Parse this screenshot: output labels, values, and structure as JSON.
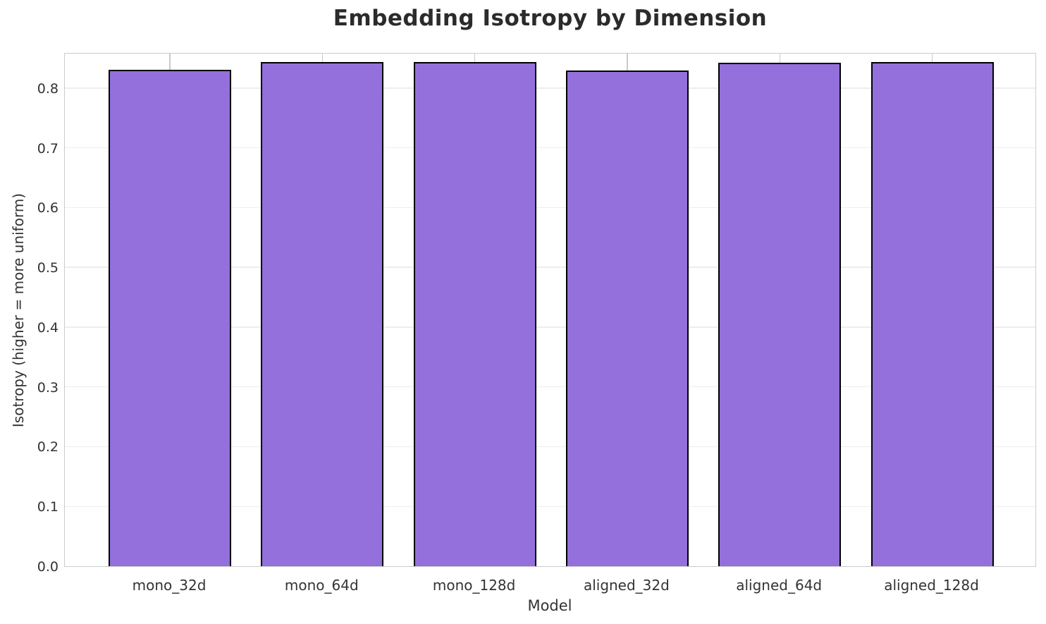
{
  "chart_data": {
    "type": "bar",
    "title": "Embedding Isotropy by Dimension",
    "xlabel": "Model",
    "ylabel": "Isotropy (higher = more uniform)",
    "categories": [
      "mono_32d",
      "mono_64d",
      "mono_128d",
      "aligned_32d",
      "aligned_64d",
      "aligned_128d"
    ],
    "values": [
      0.83,
      0.843,
      0.844,
      0.829,
      0.842,
      0.843
    ],
    "ylim": [
      0,
      0.86
    ],
    "yticks": [
      "0.0",
      "0.1",
      "0.2",
      "0.3",
      "0.4",
      "0.5",
      "0.6",
      "0.7",
      "0.8"
    ],
    "grid": true,
    "legend": false,
    "colors": {
      "bar_fill": "#9370DB",
      "bar_edge": "#000000",
      "vertical_grid": "#c9c9c9",
      "horizontal_grid": "#ededed",
      "spine": "#cccccc",
      "title_text": "#2b2b2b",
      "tick_text": "#333333"
    }
  }
}
